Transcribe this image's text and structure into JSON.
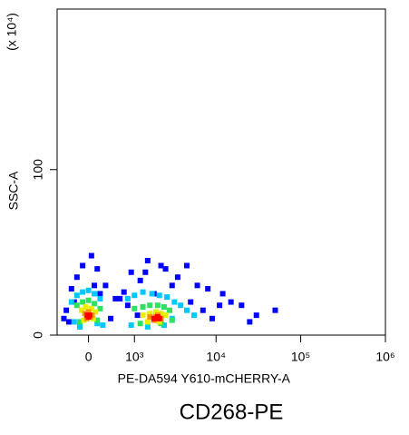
{
  "chart_data": {
    "type": "scatter",
    "title": "CD268-PE",
    "x_label": "PE-DA594 Y610-mCHERRY-A",
    "y_label": "SSC-A",
    "y_multiplier": "(x 10⁴)",
    "xscale": "biexponential",
    "xlim": [
      -600,
      1000000
    ],
    "xticks": [
      0,
      {
        "value": 1000,
        "label": "10³"
      },
      {
        "value": 10000,
        "label": "10⁴"
      },
      {
        "value": 100000,
        "label": "10⁵"
      },
      {
        "value": 1000000,
        "label": "10⁶"
      }
    ],
    "ylim": [
      0,
      197
    ],
    "yticks": [
      0,
      100
    ],
    "series": [
      {
        "color": "#0000ff",
        "x": [
          -400,
          -300,
          -200,
          -100,
          50,
          150,
          300,
          500,
          700,
          900,
          1200,
          1500,
          2500,
          3500,
          4500,
          6000,
          8000,
          12000,
          15000,
          20000,
          30000,
          50000,
          -350,
          -250,
          100,
          400,
          800,
          1100,
          1800,
          3000,
          5000,
          7000,
          9000,
          11000,
          25000,
          -450,
          200,
          600,
          1400,
          2200
        ],
        "y": [
          15,
          28,
          35,
          42,
          48,
          40,
          30,
          22,
          26,
          38,
          33,
          45,
          40,
          35,
          42,
          30,
          28,
          25,
          20,
          18,
          12,
          15,
          8,
          20,
          30,
          10,
          18,
          12,
          25,
          30,
          20,
          15,
          10,
          18,
          8,
          10,
          25,
          22,
          38,
          42
        ]
      },
      {
        "color": "#00c8ff",
        "x": [
          -300,
          -200,
          -100,
          0,
          100,
          200,
          -250,
          150,
          800,
          1000,
          1300,
          1700,
          2100,
          2600,
          3200,
          3800,
          900,
          1500,
          2400,
          3000,
          -150,
          250,
          4500,
          5500
        ],
        "y": [
          20,
          24,
          26,
          27,
          25,
          22,
          8,
          7,
          22,
          24,
          26,
          25,
          24,
          23,
          20,
          18,
          6,
          5,
          6,
          10,
          5,
          6,
          15,
          12
        ]
      },
      {
        "color": "#30e060",
        "x": [
          -200,
          -100,
          0,
          100,
          200,
          -150,
          150,
          1000,
          1300,
          1600,
          2000,
          2400,
          2800,
          1200,
          2200,
          3000
        ],
        "y": [
          18,
          20,
          21,
          19,
          16,
          8,
          9,
          16,
          17,
          18,
          18,
          17,
          15,
          7,
          7,
          9
        ]
      },
      {
        "color": "#e8f000",
        "x": [
          -120,
          -50,
          50,
          120,
          -80,
          80,
          1300,
          1600,
          1900,
          2200,
          2500,
          1500,
          2100
        ],
        "y": [
          15,
          17,
          16,
          14,
          9,
          10,
          12,
          13,
          14,
          13,
          12,
          8,
          8
        ]
      },
      {
        "color": "#ff9000",
        "x": [
          -60,
          0,
          60,
          -30,
          30,
          1600,
          1900,
          2200,
          1800,
          2000
        ],
        "y": [
          13,
          14,
          12,
          10,
          11,
          11,
          11,
          10,
          9,
          12
        ]
      },
      {
        "color": "#ff0000",
        "x": [
          -20,
          20,
          0,
          1800,
          2000,
          2100
        ],
        "y": [
          12,
          12,
          11,
          10,
          11,
          10
        ]
      }
    ]
  }
}
